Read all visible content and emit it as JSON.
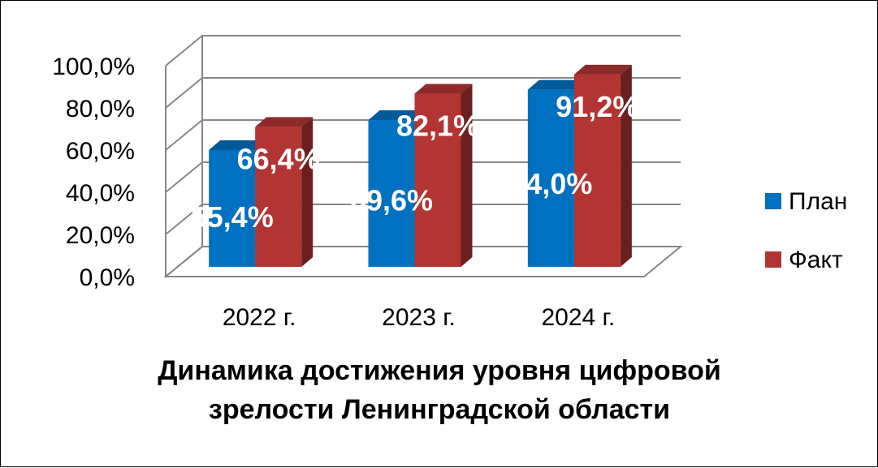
{
  "chart_data": {
    "type": "bar",
    "title": "Динамика достижения уровня цифровой зрелости Ленинградской области",
    "title_lines": [
      "Динамика достижения уровня цифровой",
      "зрелости Ленинградской области"
    ],
    "categories": [
      "2022 г.",
      "2023 г.",
      "2024 г."
    ],
    "series": [
      {
        "name": "План",
        "values": [
          55.4,
          69.6,
          84.0
        ],
        "labels": [
          "55,4%",
          "69,6%",
          "84,0%"
        ],
        "color": "#0070C0"
      },
      {
        "name": "Факт",
        "values": [
          66.4,
          82.1,
          91.2
        ],
        "labels": [
          "66,4%",
          "82,1%",
          "91,2%"
        ],
        "color": "#B23433"
      }
    ],
    "yticks": [
      "0,0%",
      "20,0%",
      "40,0%",
      "60,0%",
      "80,0%",
      "100,0%"
    ],
    "ylim": [
      0,
      100
    ],
    "grid": true,
    "legend_position": "right",
    "style": "3d-column"
  }
}
